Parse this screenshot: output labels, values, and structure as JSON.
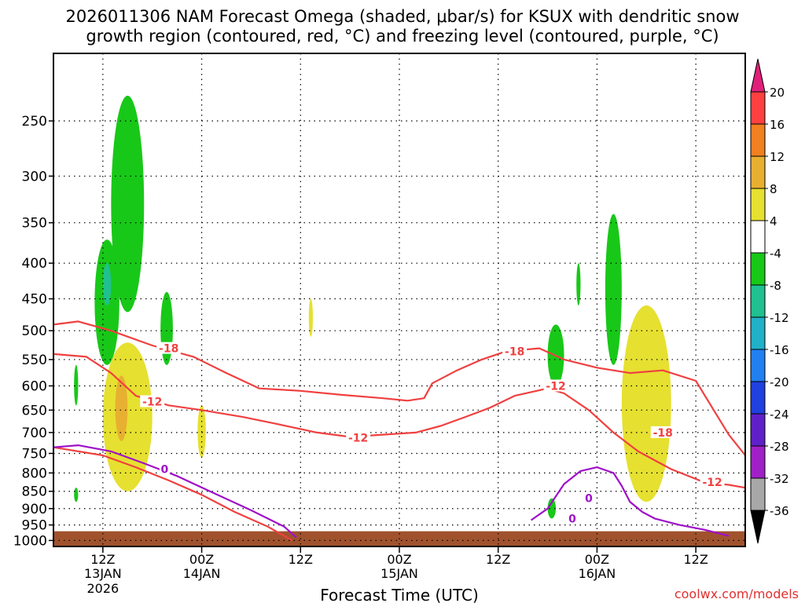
{
  "title": {
    "line1": "2026011306 NAM Forecast Omega (shaded, μbar/s) for KSUX with dendritic snow",
    "line2": "growth region (contoured, red, °C) and freezing level (contoured, purple, °C)"
  },
  "footer": {
    "credit": "coolwx.com/models"
  },
  "chart_data": {
    "type": "heatmap",
    "title": "2026011306 NAM Forecast Omega (shaded, μbar/s) for KSUX with dendritic snow growth region (contoured, red, °C) and freezing level (contoured, purple, °C)",
    "xlabel": "Forecast Time (UTC)",
    "ylabel": "",
    "x_ticks": [
      {
        "top": "12Z",
        "mid": "13JAN",
        "bottom": "2026",
        "hour": 12
      },
      {
        "top": "00Z",
        "mid": "14JAN",
        "bottom": "",
        "hour": 24
      },
      {
        "top": "12Z",
        "mid": "",
        "bottom": "",
        "hour": 36
      },
      {
        "top": "00Z",
        "mid": "15JAN",
        "bottom": "",
        "hour": 48
      },
      {
        "top": "12Z",
        "mid": "",
        "bottom": "",
        "hour": 60
      },
      {
        "top": "00Z",
        "mid": "16JAN",
        "bottom": "",
        "hour": 72
      },
      {
        "top": "12Z",
        "mid": "",
        "bottom": "",
        "hour": 84
      }
    ],
    "xlim_hours": [
      6,
      90
    ],
    "y_ticks": [
      250,
      300,
      350,
      400,
      450,
      500,
      550,
      600,
      650,
      700,
      750,
      800,
      850,
      900,
      950,
      1000
    ],
    "ylim": [
      1020,
      200
    ],
    "y_scale": "log-pressure",
    "grid": true,
    "colorbar": {
      "labels": [
        20,
        16,
        12,
        8,
        4,
        -4,
        -8,
        -12,
        -16,
        -20,
        -24,
        -28,
        -32,
        -36
      ],
      "bins": [
        {
          "range": [
            16,
            20
          ],
          "color": "#ff4040"
        },
        {
          "range": [
            12,
            16
          ],
          "color": "#f08020"
        },
        {
          "range": [
            8,
            12
          ],
          "color": "#e8b030"
        },
        {
          "range": [
            4,
            8
          ],
          "color": "#e6e030"
        },
        {
          "range": [
            -4,
            4
          ],
          "color": "#ffffff"
        },
        {
          "range": [
            -8,
            -4
          ],
          "color": "#18c818"
        },
        {
          "range": [
            -12,
            -8
          ],
          "color": "#20c090"
        },
        {
          "range": [
            -16,
            -12
          ],
          "color": "#20b0c8"
        },
        {
          "range": [
            -20,
            -16
          ],
          "color": "#2080f0"
        },
        {
          "range": [
            -24,
            -20
          ],
          "color": "#2040e0"
        },
        {
          "range": [
            -28,
            -24
          ],
          "color": "#6020c8"
        },
        {
          "range": [
            -32,
            -28
          ],
          "color": "#a020c8"
        },
        {
          "range": [
            -36,
            -32
          ],
          "color": "#a8a8a8"
        }
      ],
      "top_arrow_color": "#e0207a",
      "bottom_arrow_color": "#000000"
    },
    "contours": {
      "dgz_color": "#f04040",
      "freezing_color": "#a010c8",
      "dgz_labels": [
        "-18",
        "-12",
        "-12",
        "-18",
        "-12",
        "-18",
        "-12"
      ],
      "freezing_labels": [
        "0",
        "0",
        "0"
      ],
      "dgz_minus12_lower": [
        [
          6,
          735
        ],
        [
          12,
          755
        ],
        [
          16,
          785
        ],
        [
          20,
          820
        ],
        [
          24,
          860
        ],
        [
          28,
          910
        ],
        [
          32,
          955
        ],
        [
          35,
          1000
        ]
      ],
      "freezing_lower_left": [
        [
          6,
          735
        ],
        [
          9,
          730
        ],
        [
          13,
          745
        ],
        [
          17,
          775
        ],
        [
          21,
          808
        ],
        [
          25,
          850
        ],
        [
          30,
          905
        ],
        [
          34,
          955
        ],
        [
          35.5,
          990
        ]
      ],
      "dgz_minus18_top": [
        [
          6,
          490
        ],
        [
          9,
          485
        ],
        [
          13,
          500
        ],
        [
          18,
          525
        ],
        [
          23,
          545
        ],
        [
          27,
          575
        ],
        [
          31,
          605
        ],
        [
          36,
          610
        ],
        [
          41,
          618
        ],
        [
          46,
          625
        ],
        [
          49,
          630
        ],
        [
          51,
          625
        ],
        [
          52,
          595
        ],
        [
          55,
          570
        ],
        [
          58,
          550
        ],
        [
          61,
          535
        ],
        [
          65,
          530
        ],
        [
          68,
          550
        ],
        [
          72,
          565
        ],
        [
          76,
          575
        ],
        [
          80,
          570
        ],
        [
          84,
          590
        ],
        [
          88,
          705
        ],
        [
          90,
          755
        ]
      ],
      "dgz_minus12_mid": [
        [
          6,
          540
        ],
        [
          10,
          545
        ],
        [
          13,
          575
        ],
        [
          16,
          620
        ],
        [
          20,
          640
        ],
        [
          24,
          650
        ],
        [
          29,
          665
        ],
        [
          33,
          680
        ],
        [
          38,
          700
        ],
        [
          42,
          710
        ],
        [
          46,
          705
        ],
        [
          50,
          700
        ],
        [
          53,
          685
        ],
        [
          56,
          665
        ],
        [
          59,
          645
        ],
        [
          62,
          620
        ],
        [
          66,
          605
        ],
        [
          68,
          615
        ],
        [
          71,
          650
        ],
        [
          74,
          700
        ],
        [
          77,
          745
        ],
        [
          81,
          790
        ],
        [
          85,
          825
        ],
        [
          88,
          832
        ],
        [
          90,
          840
        ]
      ],
      "freezing_right": [
        [
          64,
          935
        ],
        [
          66,
          900
        ],
        [
          68,
          830
        ],
        [
          70,
          795
        ],
        [
          72,
          785
        ],
        [
          74,
          800
        ],
        [
          75,
          835
        ],
        [
          76,
          880
        ],
        [
          77.5,
          910
        ],
        [
          79,
          930
        ],
        [
          82,
          950
        ],
        [
          85,
          965
        ],
        [
          88,
          985
        ]
      ]
    },
    "shaded_regions": [
      {
        "value_bin": [
          -8,
          -4
        ],
        "hours": [
          13,
          17
        ],
        "pressure": [
          230,
          470
        ]
      },
      {
        "value_bin": [
          -8,
          -4
        ],
        "hours": [
          11,
          14
        ],
        "pressure": [
          370,
          560
        ]
      },
      {
        "value_bin": [
          -12,
          -8
        ],
        "hours": [
          12,
          13
        ],
        "pressure": [
          400,
          460
        ]
      },
      {
        "value_bin": [
          -8,
          -4
        ],
        "hours": [
          19,
          20.5
        ],
        "pressure": [
          440,
          560
        ]
      },
      {
        "value_bin": [
          -8,
          -4
        ],
        "hours": [
          8.5,
          9
        ],
        "pressure": [
          560,
          640
        ]
      },
      {
        "value_bin": [
          -8,
          -4
        ],
        "hours": [
          8.5,
          9
        ],
        "pressure": [
          840,
          880
        ]
      },
      {
        "value_bin": [
          4,
          8
        ],
        "hours": [
          12,
          18
        ],
        "pressure": [
          520,
          850
        ]
      },
      {
        "value_bin": [
          8,
          12
        ],
        "hours": [
          13.5,
          15
        ],
        "pressure": [
          580,
          720
        ]
      },
      {
        "value_bin": [
          4,
          8
        ],
        "hours": [
          23.5,
          24.5
        ],
        "pressure": [
          640,
          760
        ]
      },
      {
        "value_bin": [
          4,
          8
        ],
        "hours": [
          37,
          37.5
        ],
        "pressure": [
          450,
          510
        ]
      },
      {
        "value_bin": [
          -8,
          -4
        ],
        "hours": [
          66,
          68
        ],
        "pressure": [
          490,
          600
        ]
      },
      {
        "value_bin": [
          -8,
          -4
        ],
        "hours": [
          69.5,
          70
        ],
        "pressure": [
          400,
          460
        ]
      },
      {
        "value_bin": [
          -8,
          -4
        ],
        "hours": [
          73,
          75
        ],
        "pressure": [
          340,
          560
        ]
      },
      {
        "value_bin": [
          4,
          8
        ],
        "hours": [
          75,
          81
        ],
        "pressure": [
          460,
          880
        ]
      },
      {
        "value_bin": [
          -8,
          -4
        ],
        "hours": [
          66,
          67
        ],
        "pressure": [
          870,
          930
        ]
      }
    ],
    "terrain": {
      "color": "#a0522d",
      "top_pressure": 970
    }
  }
}
